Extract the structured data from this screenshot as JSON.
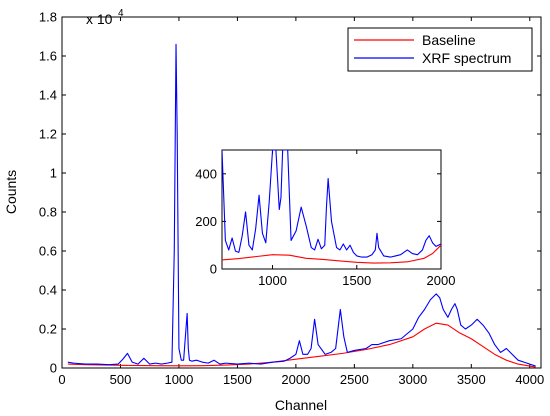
{
  "chart_data": [
    {
      "type": "line",
      "xlabel": "Channel",
      "ylabel": "Counts",
      "y_exponent_label": "x 10",
      "y_exponent": "4",
      "xlim": [
        0,
        4096
      ],
      "ylim": [
        0,
        1.8
      ],
      "y_unit_multiplier": 10000,
      "xticks": [
        0,
        500,
        1000,
        1500,
        2000,
        2500,
        3000,
        3500,
        4000
      ],
      "yticks": [
        0,
        0.2,
        0.4,
        0.6,
        0.8,
        1,
        1.2,
        1.4,
        1.6,
        1.8
      ],
      "legend": {
        "placement": "top-right",
        "entries": [
          "Baseline",
          "XRF spectrum"
        ]
      },
      "series": [
        {
          "name": "Baseline",
          "color": "#ff0000",
          "x": [
            50,
            200,
            400,
            600,
            800,
            1000,
            1200,
            1400,
            1600,
            1800,
            2000,
            2200,
            2400,
            2600,
            2800,
            3000,
            3100,
            3200,
            3300,
            3400,
            3500,
            3600,
            3700,
            3800,
            3900,
            4050
          ],
          "y": [
            0.02,
            0.017,
            0.015,
            0.013,
            0.012,
            0.011,
            0.012,
            0.015,
            0.02,
            0.03,
            0.045,
            0.06,
            0.075,
            0.095,
            0.12,
            0.16,
            0.2,
            0.23,
            0.22,
            0.18,
            0.15,
            0.11,
            0.07,
            0.04,
            0.02,
            0.005
          ]
        },
        {
          "name": "XRF spectrum",
          "color": "#0000ff",
          "x": [
            50,
            100,
            200,
            300,
            400,
            480,
            520,
            560,
            600,
            650,
            700,
            750,
            800,
            850,
            900,
            940,
            960,
            975,
            985,
            1000,
            1020,
            1040,
            1060,
            1070,
            1080,
            1090,
            1110,
            1150,
            1200,
            1250,
            1300,
            1350,
            1400,
            1500,
            1600,
            1700,
            1800,
            1900,
            1950,
            2000,
            2030,
            2060,
            2100,
            2130,
            2160,
            2190,
            2250,
            2300,
            2340,
            2380,
            2410,
            2440,
            2500,
            2600,
            2650,
            2700,
            2750,
            2800,
            2900,
            3000,
            3050,
            3100,
            3150,
            3200,
            3230,
            3260,
            3300,
            3330,
            3360,
            3380,
            3410,
            3450,
            3500,
            3550,
            3600,
            3650,
            3700,
            3750,
            3800,
            3850,
            3900,
            3950,
            4000,
            4050
          ],
          "y": [
            0.03,
            0.025,
            0.02,
            0.02,
            0.017,
            0.02,
            0.045,
            0.075,
            0.03,
            0.02,
            0.05,
            0.02,
            0.025,
            0.02,
            0.025,
            0.03,
            0.6,
            1.66,
            1.2,
            0.1,
            0.04,
            0.04,
            0.2,
            0.28,
            0.1,
            0.04,
            0.035,
            0.04,
            0.03,
            0.025,
            0.04,
            0.02,
            0.025,
            0.02,
            0.025,
            0.02,
            0.03,
            0.035,
            0.05,
            0.07,
            0.14,
            0.07,
            0.07,
            0.1,
            0.25,
            0.12,
            0.07,
            0.08,
            0.1,
            0.3,
            0.16,
            0.08,
            0.09,
            0.1,
            0.12,
            0.12,
            0.13,
            0.14,
            0.15,
            0.2,
            0.26,
            0.3,
            0.35,
            0.38,
            0.36,
            0.3,
            0.26,
            0.3,
            0.33,
            0.3,
            0.22,
            0.2,
            0.22,
            0.25,
            0.22,
            0.18,
            0.12,
            0.08,
            0.1,
            0.07,
            0.04,
            0.03,
            0.02,
            0.01
          ]
        }
      ]
    },
    {
      "type": "line",
      "role": "inset",
      "xlim": [
        700,
        2000
      ],
      "ylim": [
        0,
        500
      ],
      "xticks": [
        1000,
        1500,
        2000
      ],
      "yticks": [
        0,
        200,
        400
      ],
      "series": [
        {
          "name": "Baseline",
          "color": "#ff0000",
          "x": [
            700,
            800,
            900,
            1000,
            1100,
            1200,
            1300,
            1400,
            1500,
            1600,
            1700,
            1800,
            1900,
            1950,
            2000
          ],
          "y": [
            38,
            44,
            52,
            60,
            58,
            45,
            40,
            34,
            28,
            25,
            26,
            30,
            45,
            65,
            100
          ]
        },
        {
          "name": "XRF spectrum",
          "color": "#0000ff",
          "x": [
            700,
            720,
            740,
            760,
            780,
            800,
            820,
            840,
            860,
            880,
            900,
            920,
            940,
            960,
            980,
            1000,
            1020,
            1040,
            1050,
            1060,
            1075,
            1090,
            1110,
            1140,
            1170,
            1200,
            1230,
            1250,
            1270,
            1290,
            1310,
            1320,
            1330,
            1350,
            1380,
            1400,
            1420,
            1440,
            1460,
            1480,
            1500,
            1530,
            1560,
            1590,
            1610,
            1620,
            1630,
            1660,
            1700,
            1730,
            1760,
            1780,
            1800,
            1830,
            1860,
            1890,
            1910,
            1930,
            1950,
            1970,
            2000
          ],
          "y": [
            500,
            120,
            80,
            130,
            75,
            70,
            140,
            240,
            100,
            80,
            170,
            310,
            150,
            110,
            280,
            500,
            500,
            250,
            300,
            500,
            500,
            500,
            120,
            160,
            260,
            180,
            90,
            80,
            125,
            85,
            100,
            260,
            380,
            200,
            90,
            80,
            105,
            80,
            100,
            70,
            55,
            50,
            50,
            60,
            80,
            150,
            90,
            55,
            50,
            55,
            60,
            70,
            80,
            65,
            60,
            80,
            120,
            140,
            110,
            95,
            105
          ]
        }
      ]
    }
  ]
}
